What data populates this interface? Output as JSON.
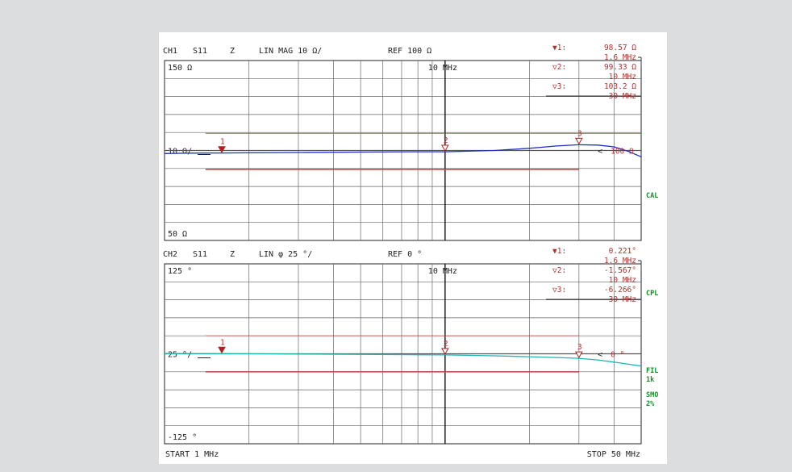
{
  "colors": {
    "trace1": "#2030c8",
    "trace2": "#20b4b4",
    "limit": "#c05050",
    "marker": "#b02020",
    "status": "#1a8a2a"
  },
  "chart_data": [
    {
      "type": "line",
      "header": {
        "channel": "CH1",
        "param": "S11",
        "format": "Z",
        "scale": "LIN MAG 10 Ω/",
        "ref": "REF 100 Ω"
      },
      "top_label": "150 Ω",
      "ref_label": "10 Ω/",
      "bottom_label": "50 Ω",
      "mid_label": "10 MHz",
      "ref_arrow_label": "100 Ω",
      "x_scale": "log",
      "xlim": [
        1,
        50
      ],
      "ylim": [
        50,
        150
      ],
      "grid": true,
      "x_grid_mhz": [
        2,
        3,
        4,
        5,
        6,
        7,
        8,
        9,
        20,
        30,
        40
      ],
      "series": [
        {
          "x": [
            1,
            1.2,
            1.6,
            2,
            3,
            5,
            8,
            10,
            15,
            20,
            25,
            30,
            35,
            40,
            45,
            50
          ],
          "values": [
            98.3,
            98.5,
            98.6,
            98.7,
            98.9,
            99.1,
            99.3,
            99.3,
            100.0,
            101.2,
            102.5,
            103.2,
            103.0,
            102.0,
            99.5,
            96.5
          ]
        }
      ],
      "limit_upper": {
        "value": 109.5,
        "x": [
          1,
          50
        ]
      },
      "limit_lower": {
        "value": 89.5,
        "x": [
          1.4,
          30
        ]
      },
      "markers": [
        {
          "id": "1",
          "x": 1.6,
          "value": 98.57,
          "active": true
        },
        {
          "id": "2",
          "x": 10,
          "value": 99.33,
          "active": false
        },
        {
          "id": "3",
          "x": 30,
          "value": 103.2,
          "active": false
        }
      ],
      "readout": [
        {
          "label": "▼1:",
          "value": "98.57  Ω",
          "freq": "1.6 MHz"
        },
        {
          "label": "▽2:",
          "value": "99.33  Ω",
          "freq": "10 MHz"
        },
        {
          "label": "▽3:",
          "value": "103.2  Ω",
          "freq": "30 MHz"
        }
      ],
      "status": [
        "CAL"
      ]
    },
    {
      "type": "line",
      "header": {
        "channel": "CH2",
        "param": "S11",
        "format": "Z",
        "scale": "LIN φ   25 °/",
        "ref": "REF 0 °"
      },
      "top_label": "125 °",
      "ref_label": "25 °/",
      "bottom_label": "-125 °",
      "mid_label": "10 MHz",
      "ref_arrow_label": "0 °",
      "x_scale": "log",
      "xlim": [
        1,
        50
      ],
      "ylim": [
        -125,
        125
      ],
      "grid": true,
      "x_grid_mhz": [
        2,
        3,
        4,
        5,
        6,
        7,
        8,
        9,
        20,
        30,
        40
      ],
      "series": [
        {
          "x": [
            1,
            1.6,
            2,
            3,
            5,
            8,
            10,
            15,
            20,
            25,
            30,
            35,
            40,
            45,
            50
          ],
          "values": [
            0.3,
            0.221,
            0.1,
            -0.3,
            -0.8,
            -1.3,
            -1.567,
            -2.8,
            -4.0,
            -5.2,
            -6.266,
            -8.5,
            -11.5,
            -14.5,
            -17.0
          ]
        }
      ],
      "limit_upper": {
        "value": 25,
        "x": [
          1.4,
          30
        ]
      },
      "limit_lower": {
        "value": -25,
        "x": [
          1.4,
          30
        ]
      },
      "markers": [
        {
          "id": "1",
          "x": 1.6,
          "value": 0.221,
          "active": true
        },
        {
          "id": "2",
          "x": 10,
          "value": -1.567,
          "active": false
        },
        {
          "id": "3",
          "x": 30,
          "value": -6.266,
          "active": false
        }
      ],
      "readout": [
        {
          "label": "▼1:",
          "value": "0.221°",
          "freq": "1.6 MHz"
        },
        {
          "label": "▽2:",
          "value": "-1.567°",
          "freq": "10 MHz"
        },
        {
          "label": "▽3:",
          "value": "-6.266°",
          "freq": "30 MHz"
        }
      ],
      "status": [
        "CPL",
        "FIL 1k",
        "SMO 2%"
      ]
    }
  ],
  "footer": {
    "start": "START  1 MHz",
    "stop": "STOP 50 MHz"
  }
}
